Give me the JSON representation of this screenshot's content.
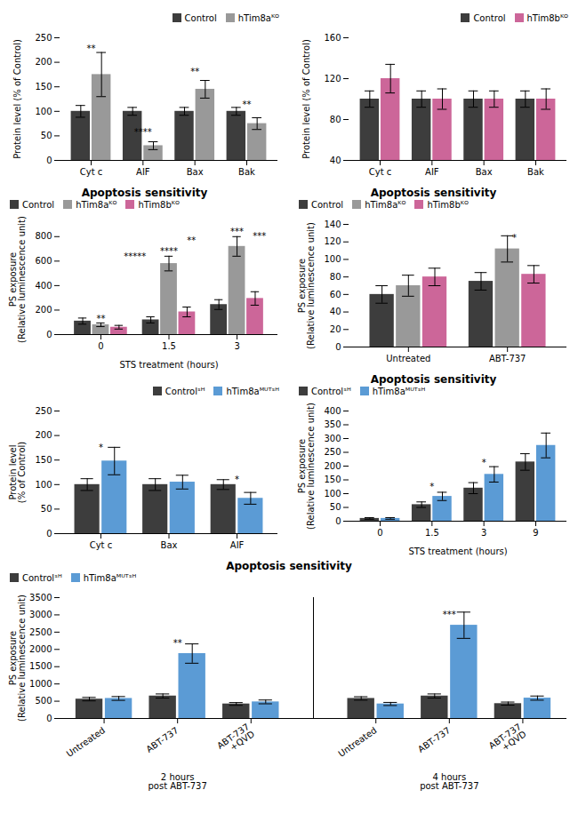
{
  "chart_data": [
    {
      "type": "bar",
      "categories": [
        "Cyt c",
        "AIF",
        "Bax",
        "Bak"
      ],
      "series": [
        {
          "name": "Control",
          "color": "#3d3d3d",
          "values": [
            100,
            100,
            100,
            100
          ],
          "errors": [
            12,
            8,
            8,
            8
          ]
        },
        {
          "name": "hTim8aᴷᴼ",
          "color": "#999999",
          "values": [
            175,
            30,
            145,
            75
          ],
          "errors": [
            45,
            8,
            18,
            12
          ]
        }
      ],
      "ylabel": "Protein level (% of Control)",
      "ylim": [
        0,
        250
      ],
      "yticks": [
        0,
        50,
        100,
        150,
        200,
        250
      ],
      "legend": "upper right",
      "annotations": [
        {
          "text": "**",
          "x": 0,
          "y": 222
        },
        {
          "text": "****",
          "x": 1,
          "y": 52
        },
        {
          "text": "**",
          "x": 2,
          "y": 174
        },
        {
          "text": "**",
          "x": 3,
          "y": 107
        }
      ]
    },
    {
      "type": "bar",
      "categories": [
        "Cyt c",
        "AIF",
        "Bax",
        "Bak"
      ],
      "series": [
        {
          "name": "Control",
          "color": "#3d3d3d",
          "values": [
            100,
            100,
            100,
            100
          ],
          "errors": [
            8,
            8,
            8,
            8
          ]
        },
        {
          "name": "hTim8bᴷᴼ",
          "color": "#cc6699",
          "values": [
            120,
            100,
            100,
            100
          ],
          "errors": [
            14,
            10,
            8,
            10
          ]
        }
      ],
      "ylabel": "Protein level (% of Control)",
      "ylim": [
        40,
        160
      ],
      "yticks": [
        40,
        80,
        120,
        160
      ],
      "legend": "upper right"
    },
    {
      "type": "bar",
      "title": "Apoptosis sensitivity",
      "xlabel": "STS treatment (hours)",
      "ylabel": "PS exposure\n(Relative luminescence unit)",
      "categories": [
        "0",
        "1.5",
        "3"
      ],
      "series": [
        {
          "name": "Control",
          "color": "#3d3d3d",
          "values": [
            110,
            120,
            245
          ],
          "errors": [
            25,
            25,
            40
          ]
        },
        {
          "name": "hTim8aᴷᴼ",
          "color": "#999999",
          "values": [
            80,
            580,
            720
          ],
          "errors": [
            15,
            60,
            80
          ]
        },
        {
          "name": "hTim8bᴷᴼ",
          "color": "#cc6699",
          "values": [
            60,
            185,
            295
          ],
          "errors": [
            15,
            40,
            55
          ]
        }
      ],
      "ylim": [
        0,
        900
      ],
      "yticks": [
        0,
        200,
        400,
        600,
        800
      ],
      "legend": "upper left",
      "annotations": [
        {
          "text": "**",
          "x": 0,
          "y": 105
        },
        {
          "text": "*****",
          "x": 0.5,
          "y": 615
        },
        {
          "text": "****",
          "x": 1,
          "y": 655
        },
        {
          "text": "**",
          "x": 1.33,
          "y": 745
        },
        {
          "text": "***",
          "x": 2.33,
          "y": 780
        },
        {
          "text": "***",
          "x": 2,
          "y": 820
        }
      ]
    },
    {
      "type": "bar",
      "title": "Apoptosis sensitivity",
      "ylabel": "PS exposure\n(Relative luminescence unit)",
      "categories": [
        "Untreated",
        "ABT-737"
      ],
      "series": [
        {
          "name": "Control",
          "color": "#3d3d3d",
          "values": [
            60,
            75
          ],
          "errors": [
            10,
            10
          ]
        },
        {
          "name": "hTim8aᴷᴼ",
          "color": "#999999",
          "values": [
            70,
            112
          ],
          "errors": [
            12,
            15
          ]
        },
        {
          "name": "hTim8bᴷᴼ",
          "color": "#cc6699",
          "values": [
            80,
            83
          ],
          "errors": [
            10,
            10
          ]
        }
      ],
      "ylim": [
        0,
        140
      ],
      "yticks": [
        0,
        20,
        40,
        60,
        80,
        100,
        120,
        140
      ],
      "legend": "upper left",
      "annotations": [
        {
          "text": "*",
          "x": 1.07,
          "y": 121
        }
      ]
    },
    {
      "type": "bar",
      "categories": [
        "Cyt c",
        "Bax",
        "AIF"
      ],
      "series": [
        {
          "name": "Controlˢᴴ",
          "color": "#3d3d3d",
          "values": [
            100,
            100,
            100
          ],
          "errors": [
            12,
            12,
            10
          ]
        },
        {
          "name": "hTim8aᴹᵁᵀˢᴴ",
          "color": "#5b9bd5",
          "values": [
            148,
            105,
            72
          ],
          "errors": [
            28,
            14,
            12
          ]
        }
      ],
      "ylabel": "Protein level\n(% of Control)",
      "ylim": [
        0,
        250
      ],
      "yticks": [
        0,
        50,
        100,
        150,
        200,
        250
      ],
      "legend": "upper right",
      "annotations": [
        {
          "text": "*",
          "x": 0,
          "y": 170
        },
        {
          "text": "*",
          "x": 2,
          "y": 105
        }
      ]
    },
    {
      "type": "bar",
      "title": "Apoptosis sensitivity",
      "xlabel": "STS treatment (hours)",
      "ylabel": "PS exposure\n(Relative luminescence unit)",
      "categories": [
        "0",
        "1.5",
        "3",
        "9"
      ],
      "series": [
        {
          "name": "Controlˢᴴ",
          "color": "#3d3d3d",
          "values": [
            10,
            60,
            120,
            215
          ],
          "errors": [
            3,
            10,
            20,
            30
          ]
        },
        {
          "name": "hTim8aᴹᵁᵀˢᴴ",
          "color": "#5b9bd5",
          "values": [
            10,
            90,
            170,
            275
          ],
          "errors": [
            3,
            15,
            28,
            45
          ]
        }
      ],
      "ylim": [
        0,
        400
      ],
      "yticks": [
        0,
        50,
        100,
        150,
        200,
        250,
        300,
        350,
        400
      ],
      "legend": "upper left",
      "annotations": [
        {
          "text": "*",
          "x": 1,
          "y": 113
        },
        {
          "text": "*",
          "x": 2,
          "y": 203
        }
      ]
    },
    {
      "type": "bar",
      "title": "Apoptosis sensitivity",
      "ylabel": "PS exposure\n(Relative luminescence unit)",
      "categories": [
        "Untreated",
        "ABT-737",
        "ABT-737\n+QVD",
        "Untreated",
        "ABT-737",
        "ABT-737\n+QVD"
      ],
      "groups": [
        "2 hours\npost ABT-737",
        "4 hours\npost ABT-737"
      ],
      "series": [
        {
          "name": "Controlˢᴴ",
          "color": "#3d3d3d",
          "values": [
            560,
            650,
            420,
            580,
            650,
            430
          ],
          "errors": [
            50,
            60,
            40,
            50,
            60,
            45
          ]
        },
        {
          "name": "hTim8aᴹᵁᵀˢᴴ",
          "color": "#5b9bd5",
          "values": [
            580,
            1880,
            480,
            420,
            2700,
            590
          ],
          "errors": [
            55,
            280,
            55,
            45,
            380,
            60
          ]
        }
      ],
      "ylim": [
        0,
        3500
      ],
      "yticks": [
        0,
        500,
        1000,
        1500,
        2000,
        2500,
        3000,
        3500
      ],
      "legend": "upper left",
      "annotations": [
        {
          "text": "**",
          "x": 1,
          "y": 2100
        },
        {
          "text": "***",
          "x": 4,
          "y": 2920
        }
      ]
    }
  ]
}
